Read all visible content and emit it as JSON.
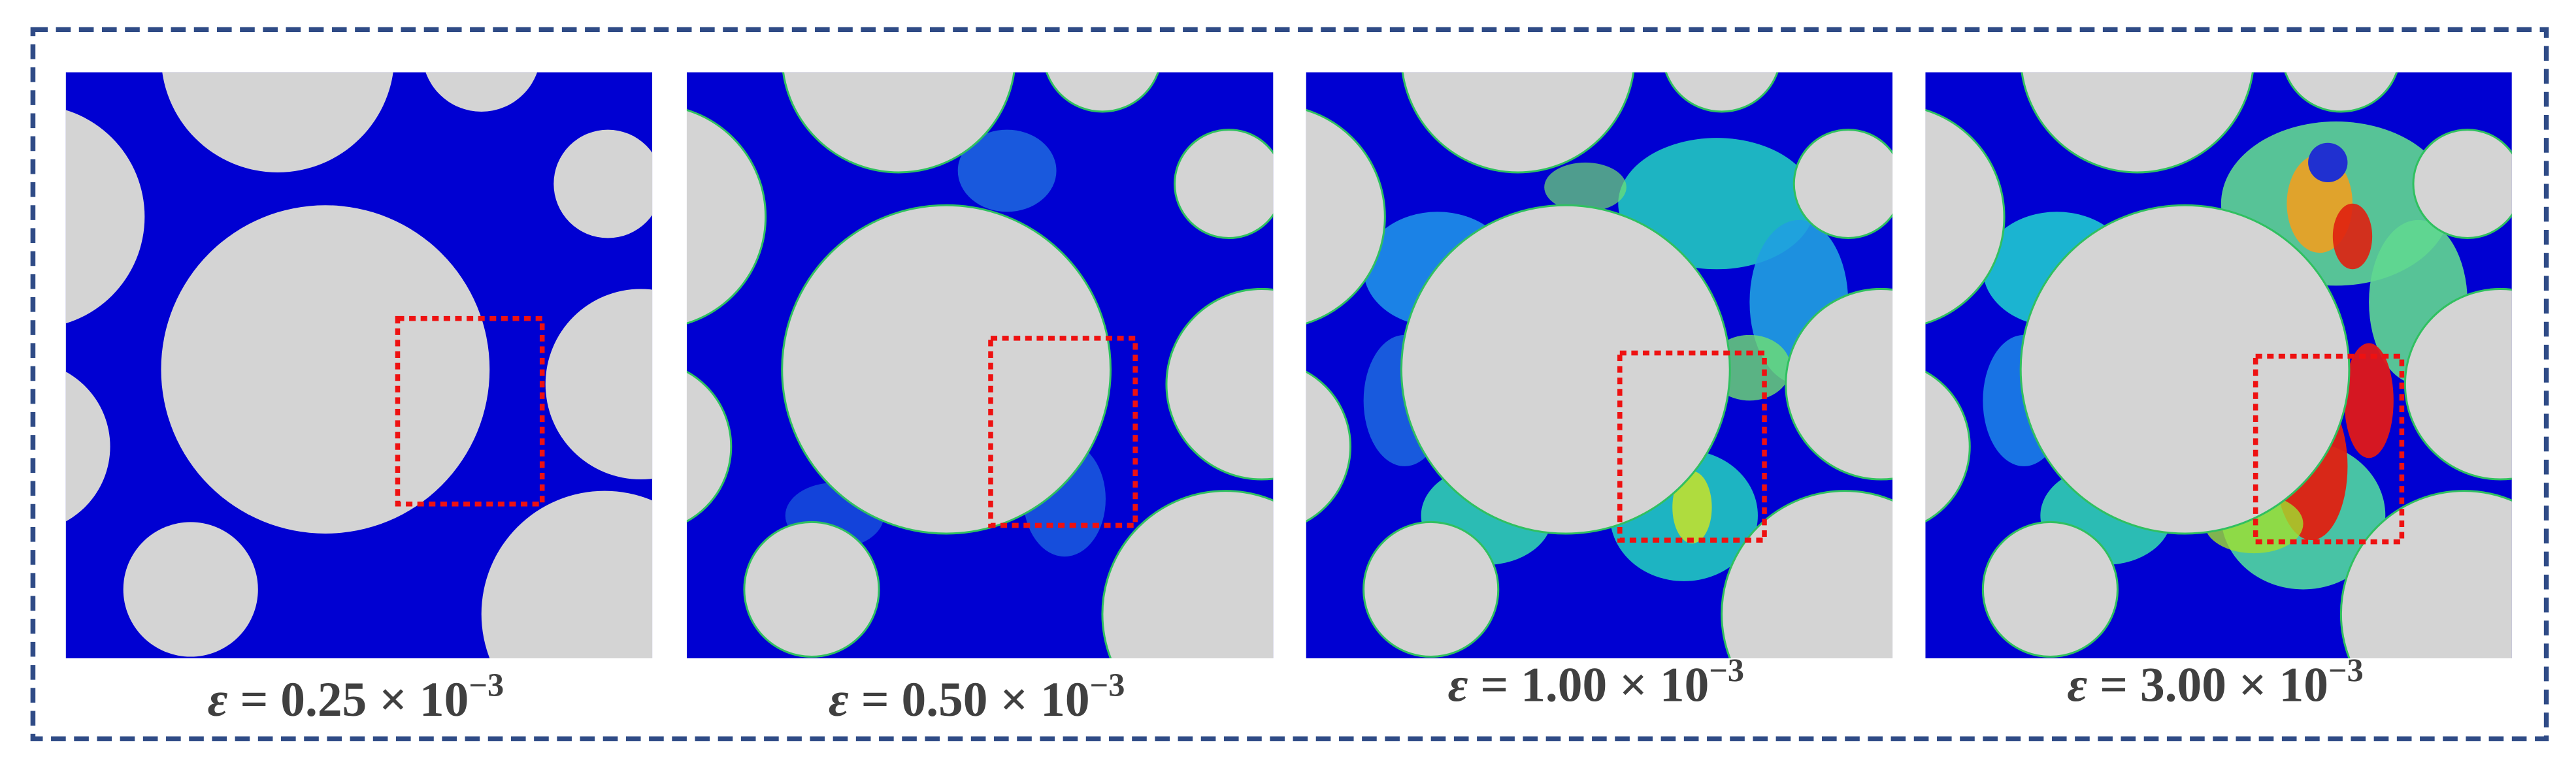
{
  "panels": [
    {
      "symbol": "ε",
      "text": "= 0.25 × 10",
      "exponent": "−3"
    },
    {
      "symbol": "ε",
      "text": "= 0.50 × 10",
      "exponent": "−3"
    },
    {
      "symbol": "ε",
      "text": "= 1.00 × 10",
      "exponent": "−3"
    },
    {
      "symbol": "ε",
      "text": "= 3.00 × 10",
      "exponent": "−3"
    }
  ]
}
